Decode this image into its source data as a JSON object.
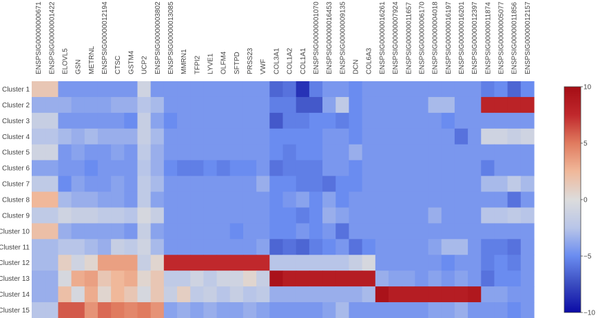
{
  "chart_data": {
    "type": "heatmap",
    "colorbar": {
      "min": -10,
      "max": 10,
      "ticks": [
        10,
        5,
        0,
        -5,
        -10
      ],
      "tick_labels": [
        "10",
        "5",
        "0",
        "−5",
        "−10"
      ],
      "colorscale": [
        "#0b0ba6",
        "#3a4cc0",
        "#6a8cf0",
        "#b8c5e8",
        "#dcdcdc",
        "#f0b89a",
        "#e07b5f",
        "#c0282c",
        "#a50d15"
      ]
    },
    "columns": [
      "ENSPSIG00000000671",
      "ENSPSIG00000001422",
      "ELOVL5",
      "GSN",
      "METRNL",
      "ENSPSIG00000012194",
      "CTSC",
      "GSTM4",
      "UCP2",
      "ENSPSIG00000003802",
      "ENSPSIG00000013085",
      "MMRN1",
      "TFPI2",
      "LYVE1",
      "OLFM4",
      "SFTPD",
      "PRSS23",
      "VWF",
      "COL3A1",
      "COL1A2",
      "COL1A1",
      "ENSPSIG00000001070",
      "ENSPSIG00000016453",
      "ENSPSIG00000009135",
      "DCN",
      "COL6A3",
      "ENSPSIG00000016261",
      "ENSPSIG00000007924",
      "ENSPSIG00000011657",
      "ENSPSIG00000006170",
      "ENSPSIG00000004018",
      "ENSPSIG00000016197",
      "ENSPSIG00000016201",
      "ENSPSIG00000012397",
      "ENSPSIG00000011874",
      "ENSPSIG00000005077",
      "ENSPSIG00000011856",
      "ENSPSIG00000012157"
    ],
    "rows": [
      "Cluster 1",
      "Cluster 2",
      "Cluster 3",
      "Cluster 4",
      "Cluster 5",
      "Cluster 6",
      "Cluster 7",
      "Cluster 8",
      "Cluster 9",
      "Cluster 10",
      "Cluster 11",
      "Cluster 12",
      "Cluster 13",
      "Cluster 14",
      "Cluster 15"
    ],
    "values": [
      [
        1.5,
        1.5,
        -4.5,
        -4.5,
        -4.5,
        -4.5,
        -4.5,
        -4.5,
        -1,
        -4.5,
        -4.5,
        -4.5,
        -4.5,
        -4.5,
        -4.5,
        -4.5,
        -4.5,
        -4.5,
        -6.5,
        -6,
        -8.5,
        -5.5,
        -4.5,
        -4.5,
        -5,
        -4.5,
        -4.5,
        -4.5,
        -4.5,
        -4.5,
        -4.5,
        -4.5,
        -4.5,
        -4.5,
        -5.5,
        -5,
        -6.5,
        -5
      ],
      [
        -3.5,
        -3.5,
        -3.5,
        -4,
        -4,
        -4,
        -3.5,
        -3.5,
        -2.5,
        -3,
        -4.5,
        -4.5,
        -4.5,
        -4.5,
        -4.5,
        -4.5,
        -4.5,
        -4.5,
        -5.5,
        -5.5,
        -7,
        -7,
        -4,
        -2,
        -5,
        -4.5,
        -4.5,
        -4.5,
        -4.5,
        -4.5,
        -3,
        -3,
        -4.5,
        -4.5,
        8,
        8,
        8,
        8
      ],
      [
        -1.5,
        -1.5,
        -4.5,
        -4.5,
        -4.5,
        -4.5,
        -4.5,
        -5,
        -1.5,
        -4,
        -5,
        -4.5,
        -4.5,
        -4.5,
        -4.5,
        -4.5,
        -4.5,
        -4.5,
        -7,
        -5.5,
        -5.5,
        -5,
        -5,
        -5.5,
        -5,
        -4.5,
        -4.5,
        -4.5,
        -4.5,
        -4.5,
        -4.5,
        -5,
        -4.5,
        -4.5,
        -4.5,
        -4.5,
        -4.5,
        -4.5
      ],
      [
        -2.5,
        -2.5,
        -3,
        -3.5,
        -3,
        -3.5,
        -3.5,
        -3.5,
        -1.5,
        -3,
        -4.5,
        -4.5,
        -4.5,
        -4.5,
        -4.5,
        -4.5,
        -4.5,
        -4.5,
        -5,
        -5,
        -5,
        -5,
        -4.5,
        -4.5,
        -5,
        -4.5,
        -4.5,
        -4.5,
        -4.5,
        -4.5,
        -4.5,
        -4.5,
        -6,
        -4.5,
        -1,
        -1,
        -1.5,
        -1
      ],
      [
        -1,
        -1,
        -4.5,
        -4,
        -4.5,
        -4.5,
        -4,
        -4.5,
        -2,
        -3.5,
        -4.5,
        -4.5,
        -4.5,
        -4.5,
        -4.5,
        -4.5,
        -4.5,
        -4.5,
        -5,
        -5.5,
        -5,
        -5,
        -4.5,
        -4.5,
        -3.5,
        -4.5,
        -4.5,
        -4.5,
        -4.5,
        -4.5,
        -4.5,
        -4.5,
        -4.5,
        -4.5,
        -4.5,
        -4.5,
        -4.5,
        -4.5
      ],
      [
        -4,
        -4,
        -4.5,
        -4.5,
        -5,
        -4.5,
        -4.5,
        -4.5,
        -2.5,
        -3.5,
        -5,
        -5.5,
        -5.5,
        -5,
        -5.5,
        -5,
        -5,
        -4.5,
        -6,
        -5.5,
        -5.5,
        -5.5,
        -4.5,
        -4.5,
        -5,
        -4.5,
        -4.5,
        -4.5,
        -4.5,
        -4.5,
        -4.5,
        -4.5,
        -4.5,
        -4.5,
        -5.5,
        -4.5,
        -4.5,
        -4.5
      ],
      [
        -2,
        -2,
        -5,
        -4,
        -4.5,
        -4.5,
        -4,
        -4.5,
        -2,
        -3,
        -4.5,
        -4.5,
        -4.5,
        -4.5,
        -4.5,
        -4.5,
        -4.5,
        -3.5,
        -5,
        -5,
        -5.5,
        -5.5,
        -6,
        -5,
        -5,
        -4.5,
        -4.5,
        -4.5,
        -4.5,
        -4.5,
        -4.5,
        -4.5,
        -4.5,
        -4.5,
        -3,
        -3,
        -2,
        -3
      ],
      [
        2.5,
        2.5,
        -3,
        -3.5,
        -3.5,
        -4,
        -4,
        -4.5,
        -2,
        -4,
        -4.5,
        -4.5,
        -4.5,
        -4.5,
        -4.5,
        -4.5,
        -4.5,
        -4.5,
        -5,
        -4.5,
        -4,
        -5,
        -4,
        -5,
        -4.5,
        -4.5,
        -4.5,
        -4.5,
        -4.5,
        -4.5,
        -4.5,
        -4.5,
        -4.5,
        -4.5,
        -4.5,
        -4.5,
        -6,
        -4.5
      ],
      [
        -2,
        -2,
        -1,
        -1.5,
        -1.5,
        -2,
        -2,
        -2.5,
        -0.5,
        -1.5,
        -4.5,
        -4.5,
        -4.5,
        -4.5,
        -4.5,
        -4.5,
        -4.5,
        -4.5,
        -5,
        -5,
        -5.5,
        -5,
        -3.5,
        -4,
        -4.5,
        -4.5,
        -4.5,
        -4.5,
        -4.5,
        -4.5,
        -3.5,
        -4.5,
        -4.5,
        -4.5,
        -2.5,
        -2.5,
        -2,
        -2.5
      ],
      [
        2,
        2,
        -3.5,
        -4,
        -4,
        -4,
        -4,
        -4.5,
        -1.5,
        -4,
        -4.5,
        -4.5,
        -4.5,
        -4.5,
        -4.5,
        -5,
        -4.5,
        -4.5,
        -5,
        -5,
        -4.5,
        -5,
        -4.5,
        -6,
        -4.5,
        -4.5,
        -4.5,
        -4.5,
        -4.5,
        -4.5,
        -4.5,
        -4.5,
        -4.5,
        -4.5,
        -4.5,
        -4.5,
        -4.5,
        -4.5
      ],
      [
        -3,
        -3,
        -2.5,
        -2.5,
        -3,
        -3.5,
        -1.5,
        -2,
        -1,
        -3,
        -4.5,
        -4.5,
        -4.5,
        -4.5,
        -4.5,
        -4.5,
        -4.5,
        -4,
        -6.5,
        -6,
        -6.5,
        -5.5,
        -5,
        -4.5,
        -6,
        -5,
        -4.5,
        -4.5,
        -4.5,
        -4.5,
        -4,
        -3,
        -3,
        -4.5,
        -5.5,
        -5.5,
        -6,
        -4.5
      ],
      [
        -3,
        -3,
        1,
        -1,
        0.5,
        3.5,
        3.5,
        3.5,
        -1.5,
        0.5,
        7.5,
        7.5,
        7.5,
        7.5,
        7.5,
        7.5,
        7.5,
        7.5,
        -2.5,
        -2.5,
        -2.5,
        -2.5,
        -2.5,
        -2.5,
        -1.5,
        -0.5,
        -4.5,
        -4.5,
        -4.5,
        -4.5,
        -4.5,
        -5,
        -4.5,
        -4.5,
        -5.5,
        -5,
        -5.5,
        -4.5
      ],
      [
        -3.5,
        -3.5,
        -0.5,
        3,
        3.5,
        1.5,
        2.5,
        3,
        0.5,
        1.5,
        -2,
        -2,
        -1,
        -2,
        -1,
        -1,
        0.5,
        -1.5,
        9.5,
        8.5,
        8.5,
        8.5,
        8.5,
        8.5,
        8.5,
        8.5,
        -3.5,
        -4,
        -4,
        -4.5,
        -4,
        -4.5,
        -4,
        -4.5,
        -6,
        -5,
        -5,
        -4.5
      ],
      [
        -3.5,
        -3.5,
        2,
        -0.5,
        3,
        0.5,
        2.5,
        1.5,
        -0.5,
        1.5,
        -1.5,
        1,
        -2,
        -1.5,
        -2.5,
        -1.5,
        -2.5,
        -2,
        -3.5,
        -3.5,
        -3.5,
        -3.5,
        -3.5,
        -3.5,
        -3.5,
        -3,
        9.5,
        8.5,
        8.5,
        8.5,
        8.5,
        8.5,
        8.5,
        9,
        -4,
        -4,
        -4.5,
        -4.5
      ],
      [
        -2.5,
        -2.5,
        6,
        6,
        4,
        5.5,
        5,
        4.5,
        5,
        4,
        -4,
        -3.5,
        -4,
        -3.5,
        -4,
        -4,
        -3.5,
        -4,
        -4.5,
        -4.5,
        -4.5,
        -4.5,
        -4,
        -3,
        -4.5,
        -4.5,
        -4.5,
        -4.5,
        -4.5,
        -4.5,
        -4,
        -4,
        -3.5,
        -4.5,
        -4.5,
        -4.5,
        -5,
        -4.5
      ]
    ]
  }
}
